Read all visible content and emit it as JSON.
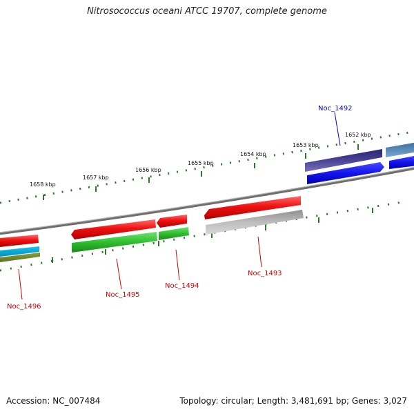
{
  "title": "Nitrosococcus oceani ATCC 19707, complete genome",
  "scale_labels": [
    "1652 kbp",
    "1653 kbp",
    "1654 kbp",
    "1655 kbp",
    "1656 kbp",
    "1657 kbp",
    "1658 kbp"
  ],
  "genes": [
    {
      "label": "Noc_1492",
      "strand": "forward",
      "color": "#1b1bd9"
    },
    {
      "label": "Noc_1493",
      "strand": "reverse",
      "color": "#ee1111"
    },
    {
      "label": "Noc_1494",
      "strand": "reverse",
      "color": "#ee1111"
    },
    {
      "label": "Noc_1495",
      "strand": "reverse",
      "color": "#ee1111"
    },
    {
      "label": "Noc_1496",
      "strand": "reverse",
      "color": "#ee1111"
    }
  ],
  "colors": {
    "forward_label": "#0000cc",
    "reverse_label": "#cc0000",
    "backbone": "#7a7a7a",
    "ticks": "#2a7a2a"
  },
  "footer": {
    "accession": "Accession: NC_007484",
    "summary": "Topology: circular; Length: 3,481,691 bp; Genes: 3,027"
  }
}
